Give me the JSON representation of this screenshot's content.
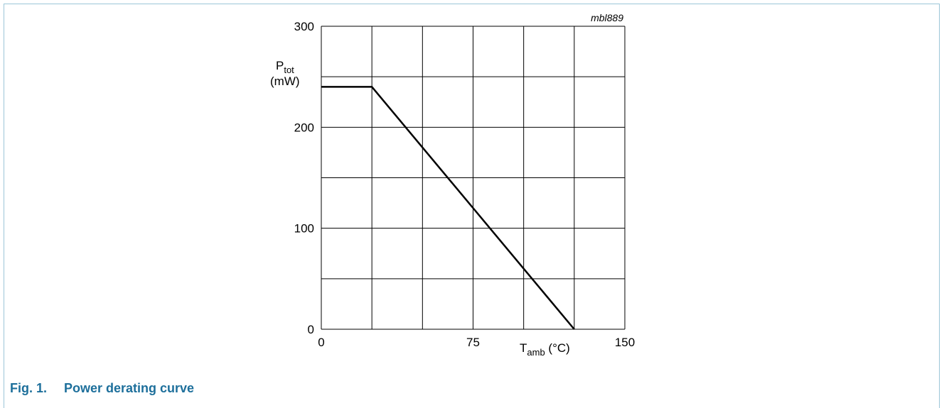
{
  "figure": {
    "number": "Fig. 1.",
    "title": "Power derating curve",
    "code": "mbl889"
  },
  "colors": {
    "caption": "#1d6f9b",
    "frame": "#9cc6d8",
    "line": "#000000"
  },
  "chart_data": {
    "type": "line",
    "title": "",
    "xlabel": {
      "main": "T",
      "sub": "amb",
      "unit": "(°C)"
    },
    "ylabel": {
      "main": "P",
      "sub": "tot",
      "unit": "(mW)"
    },
    "xlim": [
      0,
      150
    ],
    "ylim": [
      0,
      300
    ],
    "x_ticks": [
      0,
      75,
      150
    ],
    "y_ticks": [
      0,
      100,
      200,
      300
    ],
    "x_grid": [
      0,
      25,
      50,
      75,
      100,
      125,
      150
    ],
    "y_grid": [
      0,
      50,
      100,
      150,
      200,
      250,
      300
    ],
    "grid": true,
    "series": [
      {
        "x": [
          0,
          25,
          125
        ],
        "y": [
          240,
          240,
          0
        ]
      }
    ]
  }
}
